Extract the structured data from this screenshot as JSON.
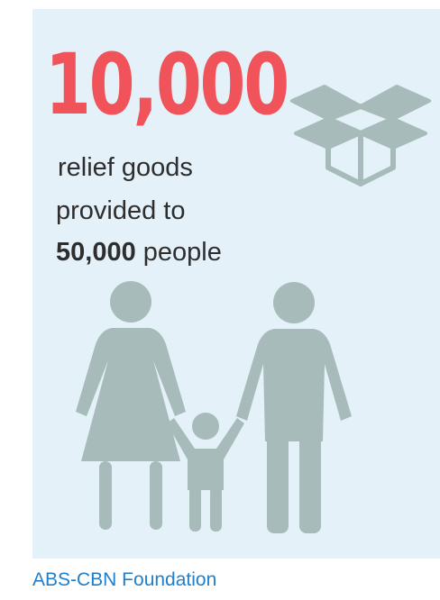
{
  "stat": {
    "big_number": "10,000",
    "line1": "relief goods",
    "line2": "provided to",
    "people_count": "50,000",
    "people_label": "people"
  },
  "footer": {
    "source": "ABS-CBN Foundation"
  },
  "icons": {
    "box": "box-icon",
    "family": "family-icon"
  },
  "colors": {
    "panel_background": "#e4f1f8",
    "accent_red": "#f0535a",
    "icon_gray": "#a7bbbb",
    "text_dark": "#2e2e2e",
    "footer_blue": "#1f7fcc"
  }
}
